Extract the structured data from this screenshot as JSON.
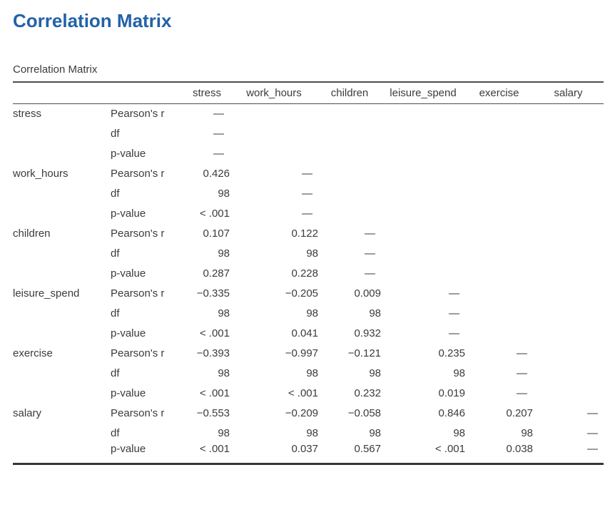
{
  "colors": {
    "heading": "#2262a8",
    "text": "#3b3b3b",
    "rule": "#4d4d4d"
  },
  "heading": {
    "title": "Correlation Matrix"
  },
  "table": {
    "caption": "Correlation Matrix",
    "columns": [
      "stress",
      "work_hours",
      "children",
      "leisure_spend",
      "exercise",
      "salary"
    ],
    "em_dash": "—",
    "groups": [
      {
        "variable": "stress",
        "stats": [
          {
            "label": "Pearson's r",
            "values": [
              "—",
              "",
              "",
              "",
              "",
              ""
            ]
          },
          {
            "label": "df",
            "values": [
              "—",
              "",
              "",
              "",
              "",
              ""
            ]
          },
          {
            "label": "p-value",
            "values": [
              "—",
              "",
              "",
              "",
              "",
              ""
            ]
          }
        ]
      },
      {
        "variable": "work_hours",
        "stats": [
          {
            "label": "Pearson's r",
            "values": [
              "0.426",
              "—",
              "",
              "",
              "",
              ""
            ]
          },
          {
            "label": "df",
            "values": [
              "98",
              "—",
              "",
              "",
              "",
              ""
            ]
          },
          {
            "label": "p-value",
            "values": [
              "< .001",
              "—",
              "",
              "",
              "",
              ""
            ]
          }
        ]
      },
      {
        "variable": "children",
        "stats": [
          {
            "label": "Pearson's r",
            "values": [
              "0.107",
              "0.122",
              "—",
              "",
              "",
              ""
            ]
          },
          {
            "label": "df",
            "values": [
              "98",
              "98",
              "—",
              "",
              "",
              ""
            ]
          },
          {
            "label": "p-value",
            "values": [
              "0.287",
              "0.228",
              "—",
              "",
              "",
              ""
            ]
          }
        ]
      },
      {
        "variable": "leisure_spend",
        "stats": [
          {
            "label": "Pearson's r",
            "values": [
              "−0.335",
              "−0.205",
              "0.009",
              "—",
              "",
              ""
            ]
          },
          {
            "label": "df",
            "values": [
              "98",
              "98",
              "98",
              "—",
              "",
              ""
            ]
          },
          {
            "label": "p-value",
            "values": [
              "< .001",
              "0.041",
              "0.932",
              "—",
              "",
              ""
            ]
          }
        ]
      },
      {
        "variable": "exercise",
        "stats": [
          {
            "label": "Pearson's r",
            "values": [
              "−0.393",
              "−0.997",
              "−0.121",
              "0.235",
              "—",
              ""
            ]
          },
          {
            "label": "df",
            "values": [
              "98",
              "98",
              "98",
              "98",
              "—",
              ""
            ]
          },
          {
            "label": "p-value",
            "values": [
              "< .001",
              "< .001",
              "0.232",
              "0.019",
              "—",
              ""
            ]
          }
        ]
      },
      {
        "variable": "salary",
        "stats": [
          {
            "label": "Pearson's r",
            "values": [
              "−0.553",
              "−0.209",
              "−0.058",
              "0.846",
              "0.207",
              "—"
            ]
          },
          {
            "label": "df",
            "values": [
              "98",
              "98",
              "98",
              "98",
              "98",
              "—"
            ]
          },
          {
            "label": "p-value",
            "values": [
              "< .001",
              "0.037",
              "0.567",
              "< .001",
              "0.038",
              "—"
            ]
          }
        ]
      }
    ]
  }
}
